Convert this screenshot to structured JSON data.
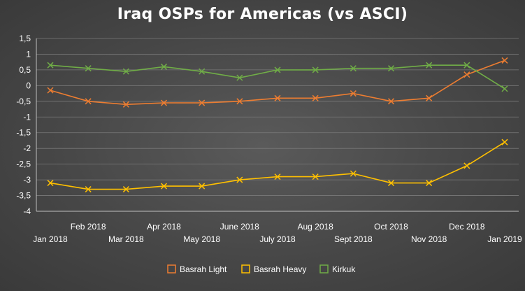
{
  "chart_data": {
    "type": "line",
    "title": "Iraq OSPs for Americas (vs ASCI)",
    "xlabel": "",
    "ylabel": "",
    "categories": [
      "Jan 2018",
      "Feb 2018",
      "Mar 2018",
      "Apr 2018",
      "May 2018",
      "June 2018",
      "July 2018",
      "Aug 2018",
      "Sept 2018",
      "Oct 2018",
      "Nov 2018",
      "Dec 2018",
      "Jan 2019"
    ],
    "x_tick_labels": [
      "Jan 2018",
      "Feb 2018",
      "Mar 2018",
      "Apr 2018",
      "May 2018",
      "June 2018",
      "July 2018",
      "Aug 2018",
      "Sept 2018",
      "Oct 2018",
      "Nov 2018",
      "Dec 2018",
      "Jan 2019"
    ],
    "y_tick_labels": [
      "1,5",
      "1",
      "0,5",
      "0",
      "-0,5",
      "-1",
      "-1,5",
      "-2",
      "-2,5",
      "-3",
      "-3,5",
      "-4"
    ],
    "y_ticks": [
      1.5,
      1,
      0.5,
      0,
      -0.5,
      -1,
      -1.5,
      -2,
      -2.5,
      -3,
      -3.5,
      -4
    ],
    "ylim": [
      -4,
      1.5
    ],
    "grid": true,
    "legend_position": "bottom",
    "marker": "x",
    "series": [
      {
        "name": "Basrah Light",
        "color": "#ed7d31",
        "values": [
          -0.15,
          -0.5,
          -0.6,
          -0.55,
          -0.55,
          -0.5,
          -0.4,
          -0.4,
          -0.25,
          -0.5,
          -0.4,
          0.35,
          0.8
        ]
      },
      {
        "name": "Basrah Heavy",
        "color": "#ffc000",
        "values": [
          -3.1,
          -3.3,
          -3.3,
          -3.2,
          -3.2,
          -3.0,
          -2.9,
          -2.9,
          -2.8,
          -3.1,
          -3.1,
          -2.55,
          -1.8
        ]
      },
      {
        "name": "Kirkuk",
        "color": "#70ad47",
        "values": [
          0.65,
          0.55,
          0.45,
          0.6,
          0.45,
          0.25,
          0.5,
          0.5,
          0.55,
          0.55,
          0.65,
          0.65,
          -0.1
        ]
      }
    ]
  }
}
